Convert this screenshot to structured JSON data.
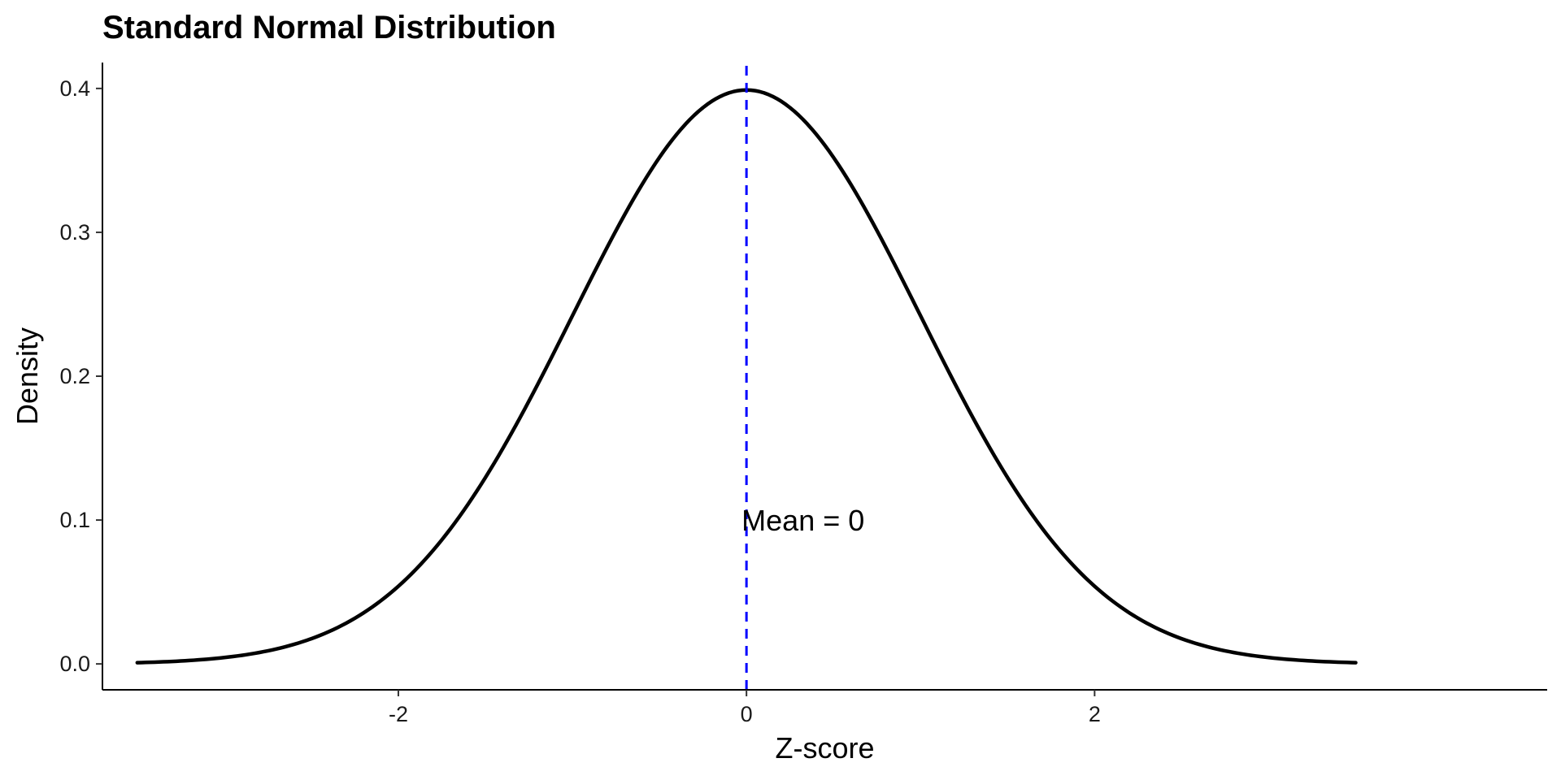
{
  "chart_data": {
    "type": "line",
    "title": "Standard Normal Distribution",
    "xlabel": "Z-score",
    "ylabel": "Density",
    "xlim": [
      -3.7,
      4.6
    ],
    "ylim": [
      -0.018,
      0.418
    ],
    "x_ticks": [
      -2,
      0,
      2
    ],
    "x_tick_labels": [
      "-2",
      "0",
      "2"
    ],
    "y_ticks": [
      0.0,
      0.1,
      0.2,
      0.3,
      0.4
    ],
    "y_tick_labels": [
      "0.0",
      "0.1",
      "0.2",
      "0.3",
      "0.4"
    ],
    "grid": false,
    "legend": "none",
    "series": [
      {
        "x": [
          -3.5,
          -3.25,
          -3.0,
          -2.75,
          -2.5,
          -2.25,
          -2.0,
          -1.75,
          -1.5,
          -1.25,
          -1.0,
          -0.75,
          -0.5,
          -0.25,
          0.0,
          0.25,
          0.5,
          0.75,
          1.0,
          1.25,
          1.5,
          1.75,
          2.0,
          2.25,
          2.5,
          2.75,
          3.0,
          3.25,
          3.5
        ],
        "y": [
          0.0009,
          0.002,
          0.0044,
          0.0091,
          0.0175,
          0.0317,
          0.054,
          0.0863,
          0.1295,
          0.1826,
          0.242,
          0.3011,
          0.3521,
          0.3867,
          0.3989,
          0.3867,
          0.3521,
          0.3011,
          0.242,
          0.1826,
          0.1295,
          0.0863,
          0.054,
          0.0317,
          0.0175,
          0.0091,
          0.0044,
          0.002,
          0.0009
        ],
        "color": "#000000"
      }
    ],
    "reference_line": {
      "x": 0,
      "color": "#0000ff",
      "style": "dashed"
    },
    "annotation": {
      "text": "Mean = 0",
      "x": 0,
      "y": 0.1
    }
  }
}
